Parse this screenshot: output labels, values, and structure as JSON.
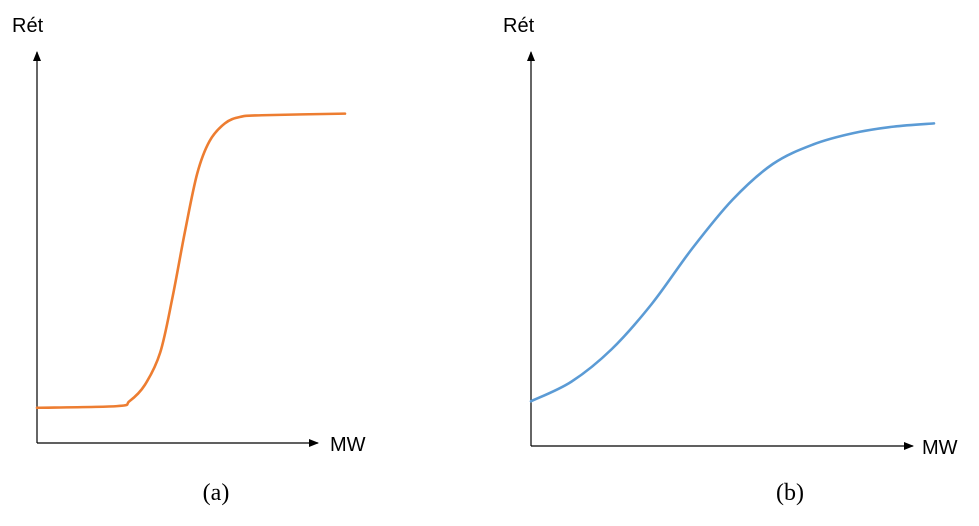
{
  "chart_data": [
    {
      "type": "line",
      "caption": "(a)",
      "ylabel": "Rét",
      "xlabel": "MW",
      "color": "#ED7D31",
      "xlim": [
        0,
        10
      ],
      "ylim": [
        0,
        10
      ],
      "series": [
        {
          "x": [
            0,
            2.6,
            3.0,
            3.5,
            4.0,
            4.4,
            4.8,
            5.2,
            5.6,
            6.1,
            6.6,
            7.3,
            10
          ],
          "y": [
            0.9,
            0.95,
            1.1,
            1.6,
            2.6,
            4.3,
            6.3,
            8.1,
            9.1,
            9.65,
            9.85,
            9.9,
            9.95
          ]
        }
      ]
    },
    {
      "type": "line",
      "caption": "(b)",
      "ylabel": "Rét",
      "xlabel": "MW",
      "color": "#5B9BD5",
      "xlim": [
        0,
        10
      ],
      "ylim": [
        0,
        10
      ],
      "series": [
        {
          "x": [
            0,
            1,
            2,
            3,
            4,
            5,
            6,
            7,
            8,
            9,
            10
          ],
          "y": [
            1.1,
            1.7,
            2.7,
            4.1,
            5.8,
            7.3,
            8.4,
            9.0,
            9.35,
            9.55,
            9.65
          ]
        }
      ]
    }
  ]
}
